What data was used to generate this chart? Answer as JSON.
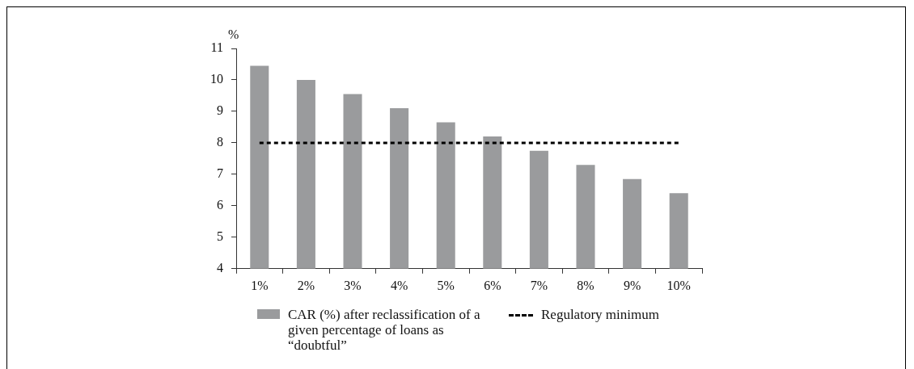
{
  "chart_data": {
    "type": "bar",
    "ylabel": "%",
    "categories": [
      "1%",
      "2%",
      "3%",
      "4%",
      "5%",
      "6%",
      "7%",
      "8%",
      "9%",
      "10%"
    ],
    "series": [
      {
        "name": "CAR (%) after reclassification of a given percentage of loans as “doubtful”",
        "color": "#9a9b9d",
        "values": [
          10.45,
          10.0,
          9.55,
          9.1,
          8.65,
          8.2,
          7.75,
          7.3,
          6.85,
          6.4
        ]
      },
      {
        "name": "Regulatory minimum",
        "type": "line",
        "color": "#000000",
        "line_style": "dashed",
        "marker": "none",
        "values": [
          8,
          8,
          8,
          8,
          8,
          8,
          8,
          8,
          8,
          8
        ]
      }
    ],
    "ylim": [
      4,
      11
    ],
    "yticks": [
      4,
      5,
      6,
      7,
      8,
      9,
      10,
      11
    ],
    "grid": false,
    "legend": "bottom"
  }
}
